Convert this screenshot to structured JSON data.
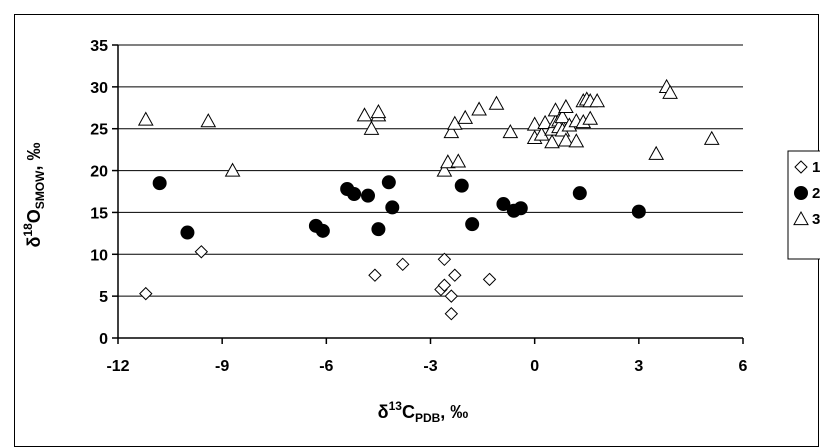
{
  "chart_data": {
    "type": "scatter",
    "title": "",
    "xlabel": {
      "base": "δ",
      "sup": "13",
      "mid": "C",
      "sub": "PDB",
      "tail": ", ‰"
    },
    "ylabel": {
      "base": "δ",
      "sup": "18",
      "mid": "O",
      "sub": "SMOW",
      "tail": ", ‰"
    },
    "xlim": [
      -12,
      6
    ],
    "ylim": [
      0,
      35
    ],
    "x_ticks": [
      -12,
      -9,
      -6,
      -3,
      0,
      3,
      6
    ],
    "y_ticks": [
      0,
      5,
      10,
      15,
      20,
      25,
      30,
      35
    ],
    "grid": "horizontal",
    "legend_placement": "right",
    "series": [
      {
        "name": "1",
        "marker": "diamond-open",
        "points": [
          [
            -11.2,
            5.3
          ],
          [
            -9.6,
            10.3
          ],
          [
            -4.6,
            7.5
          ],
          [
            -3.8,
            8.8
          ],
          [
            -2.6,
            9.4
          ],
          [
            -2.7,
            5.8
          ],
          [
            -2.6,
            6.3
          ],
          [
            -2.3,
            7.5
          ],
          [
            -2.4,
            5.0
          ],
          [
            -2.4,
            2.9
          ],
          [
            -1.3,
            7.0
          ]
        ]
      },
      {
        "name": "2",
        "marker": "circle-filled",
        "points": [
          [
            -10.8,
            18.5
          ],
          [
            -10.0,
            12.6
          ],
          [
            -6.3,
            13.4
          ],
          [
            -6.1,
            12.8
          ],
          [
            -5.4,
            17.8
          ],
          [
            -5.2,
            17.2
          ],
          [
            -4.8,
            17.0
          ],
          [
            -4.5,
            13.0
          ],
          [
            -4.2,
            18.6
          ],
          [
            -4.1,
            15.6
          ],
          [
            -2.1,
            18.2
          ],
          [
            -1.8,
            13.6
          ],
          [
            -0.9,
            16.0
          ],
          [
            -0.6,
            15.2
          ],
          [
            -0.4,
            15.5
          ],
          [
            1.3,
            17.3
          ],
          [
            3.0,
            15.1
          ]
        ]
      },
      {
        "name": "3",
        "marker": "triangle-open",
        "points": [
          [
            -11.2,
            26.1
          ],
          [
            -9.4,
            25.9
          ],
          [
            -8.7,
            20.0
          ],
          [
            -4.9,
            26.6
          ],
          [
            -4.7,
            25.0
          ],
          [
            -4.5,
            26.6
          ],
          [
            -4.5,
            27.0
          ],
          [
            -2.6,
            20.0
          ],
          [
            -2.5,
            21.0
          ],
          [
            -2.4,
            24.6
          ],
          [
            -2.2,
            21.1
          ],
          [
            -2.3,
            25.6
          ],
          [
            -2.0,
            26.3
          ],
          [
            -1.6,
            27.3
          ],
          [
            -1.1,
            28.0
          ],
          [
            -0.7,
            24.6
          ],
          [
            0.0,
            25.5
          ],
          [
            0.0,
            23.9
          ],
          [
            0.2,
            24.3
          ],
          [
            0.3,
            25.7
          ],
          [
            0.5,
            24.9
          ],
          [
            0.5,
            23.4
          ],
          [
            0.6,
            25.8
          ],
          [
            0.6,
            27.2
          ],
          [
            0.7,
            26.0
          ],
          [
            0.7,
            25.2
          ],
          [
            0.8,
            24.8
          ],
          [
            0.8,
            26.4
          ],
          [
            0.9,
            27.6
          ],
          [
            0.9,
            23.6
          ],
          [
            1.0,
            25.4
          ],
          [
            1.2,
            25.9
          ],
          [
            1.2,
            23.5
          ],
          [
            1.4,
            28.3
          ],
          [
            1.4,
            25.8
          ],
          [
            1.5,
            28.5
          ],
          [
            1.6,
            26.2
          ],
          [
            1.6,
            28.3
          ],
          [
            1.8,
            28.3
          ],
          [
            3.5,
            22.0
          ],
          [
            3.8,
            30.0
          ],
          [
            3.9,
            29.3
          ],
          [
            5.1,
            23.8
          ]
        ]
      }
    ]
  }
}
